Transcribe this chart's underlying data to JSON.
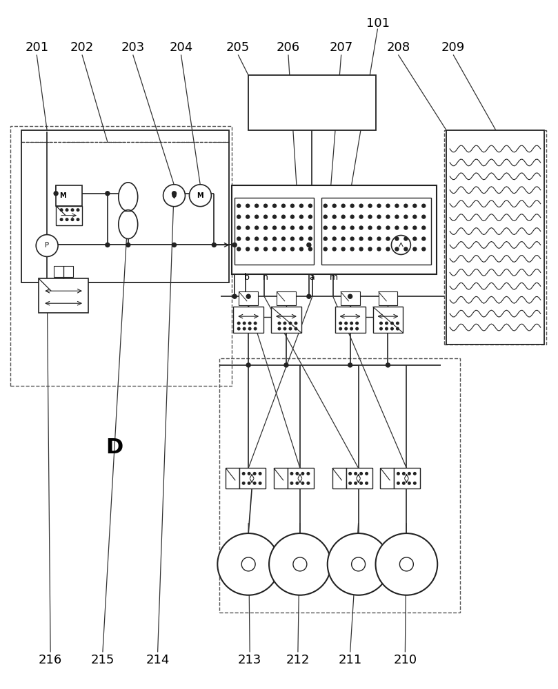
{
  "bg_color": "#ffffff",
  "lc": "#222222",
  "labels_top": [
    [
      52,
      68,
      "201"
    ],
    [
      118,
      68,
      "202"
    ],
    [
      192,
      68,
      "203"
    ],
    [
      262,
      68,
      "204"
    ],
    [
      345,
      68,
      "205"
    ],
    [
      418,
      68,
      "206"
    ],
    [
      495,
      68,
      "207"
    ],
    [
      578,
      68,
      "208"
    ],
    [
      658,
      68,
      "209"
    ]
  ],
  "label_101": [
    548,
    32,
    "101"
  ],
  "labels_bottom": [
    [
      72,
      960,
      "216"
    ],
    [
      148,
      960,
      "215"
    ],
    [
      228,
      960,
      "214"
    ],
    [
      362,
      960,
      "213"
    ],
    [
      432,
      960,
      "212"
    ],
    [
      508,
      960,
      "211"
    ],
    [
      588,
      960,
      "210"
    ]
  ],
  "label_D": [
    165,
    650,
    "D"
  ],
  "ports": [
    [
      358,
      402,
      "b"
    ],
    [
      385,
      402,
      "n"
    ],
    [
      452,
      402,
      "a"
    ],
    [
      484,
      402,
      "m"
    ]
  ]
}
